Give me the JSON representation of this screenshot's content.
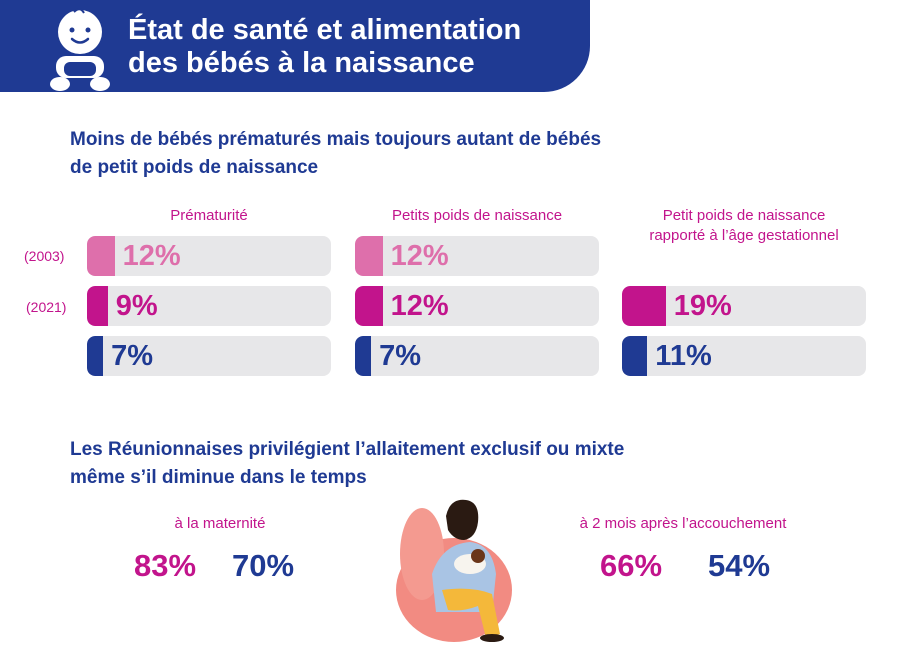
{
  "header": {
    "title_line1": "État de santé et alimentation",
    "title_line2": "des bébés à la naissance"
  },
  "section1": {
    "title_line1": "Moins de bébés prématurés mais toujours autant de bébés",
    "title_line2": "de petit poids de naissance",
    "years": {
      "y2003": "(2003)",
      "y2021": "(2021)"
    },
    "columns": [
      {
        "label_line1": "Prématurité",
        "label_line2": "",
        "bars": [
          {
            "value": 12,
            "label": "12%",
            "series": "2003"
          },
          {
            "value": 9,
            "label": "9%",
            "series": "2021"
          },
          {
            "value": 7,
            "label": "7%",
            "series": "national"
          }
        ]
      },
      {
        "label_line1": "Petits poids de naissance",
        "label_line2": "",
        "bars": [
          {
            "value": 12,
            "label": "12%",
            "series": "2003"
          },
          {
            "value": 12,
            "label": "12%",
            "series": "2021"
          },
          {
            "value": 7,
            "label": "7%",
            "series": "national"
          }
        ]
      },
      {
        "label_line1": "Petit poids de naissance",
        "label_line2": "rapporté à l’âge gestationnel",
        "bars": [
          {
            "value": 19,
            "label": "19%",
            "series": "2021"
          },
          {
            "value": 11,
            "label": "11%",
            "series": "national"
          }
        ]
      }
    ]
  },
  "section2": {
    "title_line1": "Les Réunionnaises privilégient l’allaitement exclusif ou mixte",
    "title_line2": "même s’il diminue dans le temps",
    "maternity": {
      "label": "à la maternité",
      "value_a": "83%",
      "value_b": "70%"
    },
    "two_months": {
      "label": "à 2 mois après l’accouchement",
      "value_a": "66%",
      "value_b": "54%"
    }
  },
  "colors": {
    "navy": "#1f3a93",
    "magenta": "#c2148c",
    "pink": "#de6fab",
    "track": "#e7e7e9"
  }
}
